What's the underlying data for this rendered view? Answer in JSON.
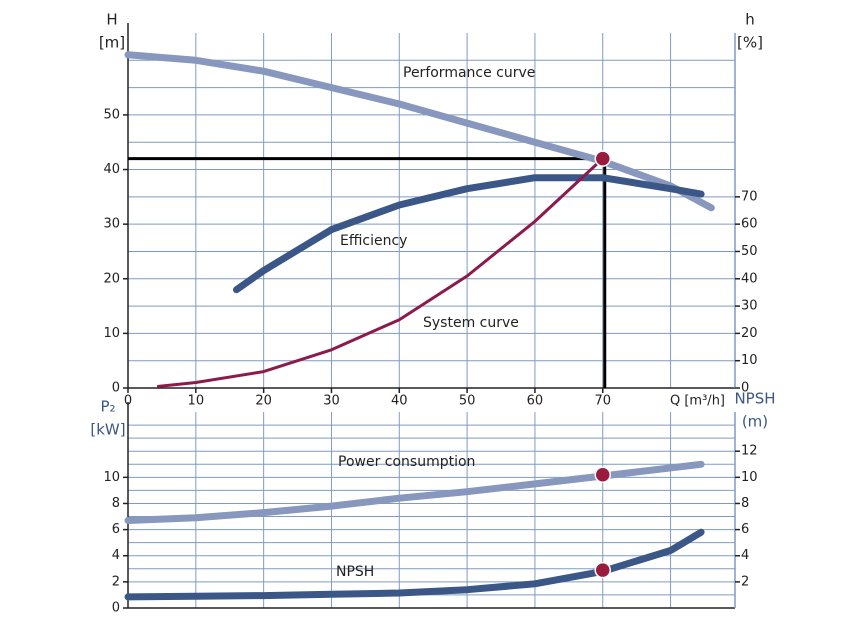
{
  "chart_data": [
    {
      "type": "line",
      "xlabel": "Q [m³/h]",
      "ylabel": [
        "H",
        "[m]"
      ],
      "y2label": [
        "h",
        "[%]"
      ],
      "xlim": [
        0,
        89.5
      ],
      "xticks": [
        0,
        10,
        20,
        30,
        40,
        50,
        60,
        70
      ],
      "x_gridlines": [
        0,
        10,
        20,
        30,
        40,
        50,
        60,
        70,
        80
      ],
      "ylim": [
        0,
        65
      ],
      "yticks": [
        0,
        10,
        20,
        30,
        40,
        50
      ],
      "y_gridlines": [
        5,
        10,
        15,
        20,
        25,
        30,
        35,
        40,
        45,
        50,
        55,
        60
      ],
      "y2lim": [
        0,
        130
      ],
      "y2ticks": [
        0,
        10,
        20,
        30,
        40,
        50,
        60,
        70
      ],
      "series": [
        {
          "name": "Performance curve",
          "color": "#8797bd",
          "width": 7,
          "x": [
            0,
            10,
            20,
            30,
            40,
            50,
            60,
            70,
            80,
            86
          ],
          "values": [
            61,
            60,
            58,
            55,
            52,
            48.5,
            45,
            41.5,
            37,
            33
          ]
        },
        {
          "name": "Efficiency",
          "color": "#3b5787",
          "width": 7,
          "axis": "y2",
          "x": [
            16,
            20,
            30,
            40,
            50,
            60,
            70,
            80,
            84.5
          ],
          "values": [
            36,
            43,
            58,
            67,
            73,
            77,
            77,
            73,
            71
          ]
        },
        {
          "name": "System curve",
          "color": "#8c1b4b",
          "width": 3,
          "x": [
            4.5,
            10,
            20,
            30,
            40,
            50,
            60,
            70
          ],
          "values": [
            0.3,
            1,
            3,
            7,
            12.5,
            20.5,
            30.5,
            42
          ]
        }
      ],
      "operating_point": {
        "x": 70,
        "y": 42,
        "color": "#9b1b3f"
      }
    },
    {
      "type": "line",
      "ylabel": [
        "P₂",
        "[kW]"
      ],
      "y2label": [
        "NPSH",
        "(m)"
      ],
      "xlim": [
        0,
        89.5
      ],
      "x_gridlines": [
        0,
        10,
        20,
        30,
        40,
        50,
        60,
        70,
        80
      ],
      "ylim": [
        0,
        15
      ],
      "yticks": [
        0,
        2,
        4,
        6,
        8,
        10
      ],
      "y_gridlines": [
        1,
        2,
        3,
        4,
        5,
        6,
        7,
        8,
        9,
        10,
        11,
        12,
        13,
        14
      ],
      "y2lim": [
        0,
        15
      ],
      "y2ticks": [
        2,
        4,
        6,
        8,
        10,
        12
      ],
      "series": [
        {
          "name": "Power consumption",
          "color": "#8797bd",
          "width": 7,
          "x": [
            0,
            10,
            20,
            30,
            40,
            50,
            60,
            70,
            84.5
          ],
          "values": [
            6.7,
            6.9,
            7.3,
            7.8,
            8.4,
            8.9,
            9.5,
            10.1,
            11
          ]
        },
        {
          "name": "NPSH",
          "color": "#3b5787",
          "width": 7,
          "axis": "y2",
          "x": [
            0,
            10,
            20,
            30,
            40,
            50,
            60,
            70,
            80,
            84.5
          ],
          "values": [
            0.85,
            0.9,
            0.95,
            1.05,
            1.15,
            1.4,
            1.85,
            2.8,
            4.4,
            5.8
          ]
        }
      ],
      "operating_points": [
        {
          "x": 70,
          "y": 10.2,
          "color": "#9b1b3f"
        },
        {
          "x": 70,
          "y": 2.9,
          "axis": "y2",
          "color": "#9b1b3f"
        }
      ]
    }
  ]
}
